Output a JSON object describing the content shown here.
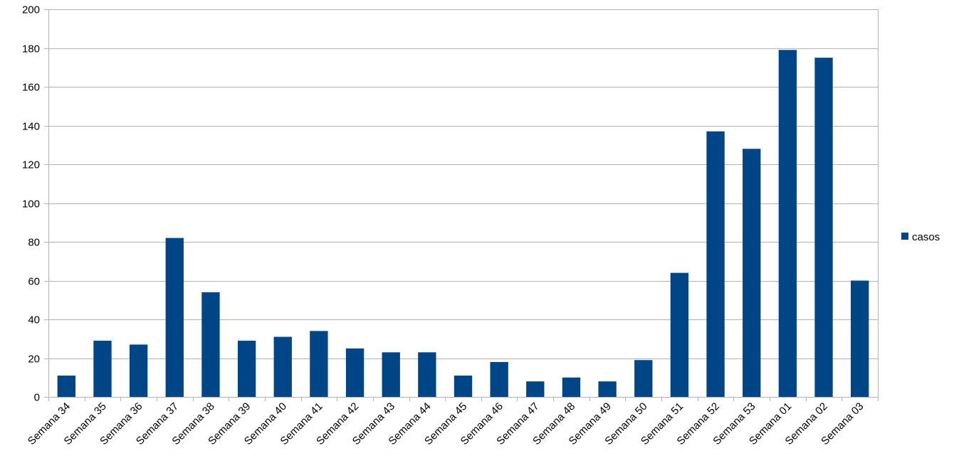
{
  "chart_data": {
    "type": "bar",
    "categories": [
      "Semana 34",
      "Semana 35",
      "Semana 36",
      "Semana 37",
      "Semana 38",
      "Semana 39",
      "Semana 40",
      "Semana 41",
      "Semana 42",
      "Semana 43",
      "Semana 44",
      "Semana 45",
      "Semana 46",
      "Semana 47",
      "Semana 48",
      "Semana 49",
      "Semana 50",
      "Semana 51",
      "Semana 52",
      "Semana 53",
      "Semana 01",
      "Semana 02",
      "Semana 03"
    ],
    "series": [
      {
        "name": "casos",
        "values": [
          11,
          29,
          27,
          82,
          54,
          29,
          31,
          34,
          25,
          23,
          23,
          11,
          18,
          8,
          10,
          8,
          19,
          64,
          137,
          128,
          179,
          175,
          60
        ],
        "color": "#004586"
      }
    ],
    "title": "",
    "xlabel": "",
    "ylabel": "",
    "ylim": [
      0,
      200
    ],
    "yticks": [
      0,
      20,
      40,
      60,
      80,
      100,
      120,
      140,
      160,
      180,
      200
    ],
    "grid": true,
    "legend_position": "right",
    "gridline_color": "#b3b3b3"
  }
}
